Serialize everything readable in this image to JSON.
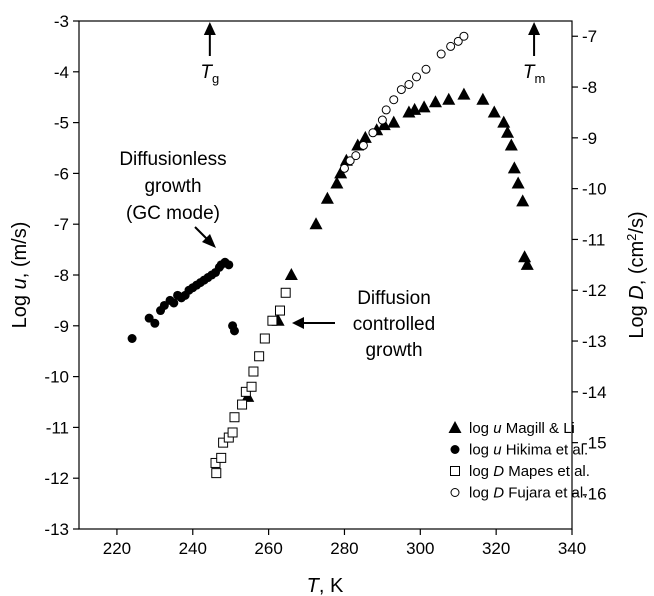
{
  "chart_data": {
    "type": "scatter",
    "xlabel": {
      "var": "T",
      "unit": ", K"
    },
    "ylabel_left": {
      "pre": "Log ",
      "var": "u",
      "unit": ", (m/s)"
    },
    "ylabel_right": {
      "pre": "Log ",
      "var": "D",
      "unit": ", (cm",
      "sup": "2",
      "unit_end": "/s)"
    },
    "xlim": [
      210,
      340
    ],
    "ylim_left": [
      -13,
      -3
    ],
    "ylim_right": [
      -16.7,
      -6.7
    ],
    "x_ticks": [
      220,
      240,
      260,
      280,
      300,
      320,
      340
    ],
    "x_tick_labels": [
      "220",
      "240",
      "260",
      "280",
      "300",
      "320",
      "340"
    ],
    "y_left_ticks": [
      -13,
      -12,
      -11,
      -10,
      -9,
      -8,
      -7,
      -6,
      -5,
      -4,
      -3
    ],
    "y_left_tick_labels": [
      "-13",
      "-12",
      "-11",
      "-10",
      "-9",
      "-8",
      "-7",
      "-6",
      "-5",
      "-4",
      "-3"
    ],
    "y_right_ticks": [
      -16,
      -15,
      -14,
      -13,
      -12,
      -11,
      -10,
      -9,
      -8,
      -7
    ],
    "y_right_tick_labels": [
      "-16",
      "-15",
      "-14",
      "-13",
      "-12",
      "-11",
      "-10",
      "-9",
      "-8",
      "-7"
    ],
    "grid": false,
    "legend_position": "bottom-right",
    "markers": {
      "tg": {
        "x": 244.5,
        "main": "T",
        "sub": "g"
      },
      "tm": {
        "x": 330,
        "main": "T",
        "sub": "m"
      }
    },
    "annotations": {
      "diffusionless": [
        "Diffusionless",
        "growth",
        "(GC mode)"
      ],
      "diffusion": [
        "Diffusion",
        "controlled",
        "growth"
      ]
    },
    "series": [
      {
        "name": "log u Magill & Li",
        "legend": {
          "pre": "log ",
          "var": "u",
          "post": " Magill & Li"
        },
        "marker": "filled-triangle",
        "axis": "left",
        "points": [
          [
            254.5,
            -10.4
          ],
          [
            262.5,
            -8.9
          ],
          [
            266,
            -8.0
          ],
          [
            272.5,
            -7.0
          ],
          [
            275.5,
            -6.5
          ],
          [
            278,
            -6.2
          ],
          [
            279,
            -6.0
          ],
          [
            280.5,
            -5.75
          ],
          [
            283.5,
            -5.45
          ],
          [
            285.5,
            -5.3
          ],
          [
            288.5,
            -5.15
          ],
          [
            290.5,
            -5.05
          ],
          [
            293,
            -5.0
          ],
          [
            297,
            -4.8
          ],
          [
            298.5,
            -4.75
          ],
          [
            301,
            -4.7
          ],
          [
            304,
            -4.6
          ],
          [
            307.5,
            -4.55
          ],
          [
            311.5,
            -4.45
          ],
          [
            316.5,
            -4.55
          ],
          [
            319.5,
            -4.8
          ],
          [
            322,
            -5.0
          ],
          [
            323,
            -5.2
          ],
          [
            324,
            -5.45
          ],
          [
            324.8,
            -5.9
          ],
          [
            325.8,
            -6.2
          ],
          [
            327,
            -6.55
          ],
          [
            327.5,
            -7.65
          ],
          [
            328.2,
            -7.8
          ]
        ]
      },
      {
        "name": "log u Hikima et al.",
        "legend": {
          "pre": "log ",
          "var": "u",
          "post": " Hikima et al."
        },
        "marker": "filled-circle",
        "axis": "left",
        "points": [
          [
            224,
            -9.25
          ],
          [
            228.5,
            -8.85
          ],
          [
            230,
            -8.95
          ],
          [
            231.5,
            -8.7
          ],
          [
            232.5,
            -8.6
          ],
          [
            234,
            -8.5
          ],
          [
            235,
            -8.55
          ],
          [
            236,
            -8.4
          ],
          [
            237,
            -8.45
          ],
          [
            238,
            -8.4
          ],
          [
            239,
            -8.3
          ],
          [
            240,
            -8.25
          ],
          [
            241,
            -8.2
          ],
          [
            242,
            -8.15
          ],
          [
            243,
            -8.1
          ],
          [
            244,
            -8.05
          ],
          [
            245,
            -8.0
          ],
          [
            246,
            -7.95
          ],
          [
            247,
            -7.85
          ],
          [
            247.5,
            -7.8
          ],
          [
            248.5,
            -7.75
          ],
          [
            249.5,
            -7.8
          ],
          [
            250.5,
            -9.0
          ],
          [
            251,
            -9.1
          ]
        ]
      },
      {
        "name": "log D Mapes et al.",
        "legend": {
          "pre": "log ",
          "var": "D",
          "post": " Mapes et al."
        },
        "marker": "open-square",
        "axis": "right",
        "points": [
          [
            246,
            -15.4
          ],
          [
            246.2,
            -15.6
          ],
          [
            247.5,
            -15.3
          ],
          [
            248,
            -15.0
          ],
          [
            249.5,
            -14.9
          ],
          [
            250.5,
            -14.8
          ],
          [
            251,
            -14.5
          ],
          [
            253,
            -14.25
          ],
          [
            254,
            -14.0
          ],
          [
            255.5,
            -13.9
          ],
          [
            256,
            -13.6
          ],
          [
            257.5,
            -13.3
          ],
          [
            259,
            -12.95
          ],
          [
            261,
            -12.6
          ],
          [
            263,
            -12.4
          ],
          [
            264.5,
            -12.05
          ]
        ]
      },
      {
        "name": "log D Fujara et al.",
        "legend": {
          "pre": "log ",
          "var": "D",
          "post": " Fujara et al."
        },
        "marker": "open-circle",
        "axis": "right",
        "points": [
          [
            280,
            -9.6
          ],
          [
            281.5,
            -9.45
          ],
          [
            283,
            -9.35
          ],
          [
            285,
            -9.15
          ],
          [
            287.5,
            -8.9
          ],
          [
            290,
            -8.65
          ],
          [
            291,
            -8.45
          ],
          [
            293,
            -8.25
          ],
          [
            295,
            -8.05
          ],
          [
            297,
            -7.95
          ],
          [
            299,
            -7.8
          ],
          [
            301.5,
            -7.65
          ],
          [
            305.5,
            -7.35
          ],
          [
            308,
            -7.2
          ],
          [
            310,
            -7.1
          ],
          [
            311.5,
            -7.0
          ]
        ]
      }
    ]
  }
}
